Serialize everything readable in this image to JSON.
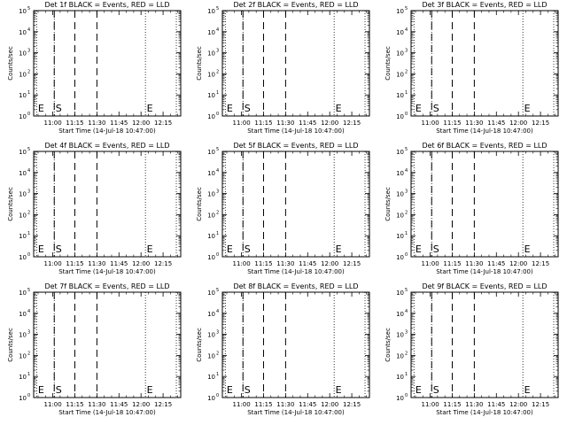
{
  "chart_data": [
    {
      "type": "line",
      "title": "Det 1f BLACK = Events, RED = LLD",
      "xlabel": "Start Time (14-Jul-18 10:47:00)",
      "ylabel": "Counts/sec",
      "y_scale": "log",
      "ylim": [
        1,
        100000
      ],
      "ytick_labels": [
        "10^0",
        "10^1",
        "10^2",
        "10^3",
        "10^4",
        "10^5"
      ],
      "xlim": [
        "10:47",
        "12:27"
      ],
      "xticks": [
        "11:00",
        "11:15",
        "11:30",
        "11:45",
        "12:00",
        "12:15"
      ],
      "series": [],
      "markers": {
        "dotted_lines": [
          "10:49",
          "11:01",
          "12:03",
          "12:24"
        ],
        "dashed_lines": [
          "11:01",
          "11:15",
          "11:30"
        ],
        "labels": [
          {
            "text": "E",
            "x": "10:49"
          },
          {
            "text": "S",
            "x": "11:01"
          },
          {
            "text": "E",
            "x": "12:03"
          }
        ]
      }
    },
    {
      "type": "line",
      "title": "Det 2f BLACK = Events, RED = LLD",
      "xlabel": "Start Time (14-Jul-18 10:47:00)",
      "ylabel": "Counts/sec",
      "y_scale": "log",
      "ylim": [
        1,
        100000
      ],
      "ytick_labels": [
        "10^0",
        "10^1",
        "10^2",
        "10^3",
        "10^4",
        "10^5"
      ],
      "xlim": [
        "10:47",
        "12:27"
      ],
      "xticks": [
        "11:00",
        "11:15",
        "11:30",
        "11:45",
        "12:00",
        "12:15"
      ],
      "series": [],
      "markers": {
        "dotted_lines": [
          "10:49",
          "11:01",
          "12:03",
          "12:24"
        ],
        "dashed_lines": [
          "11:01",
          "11:15",
          "11:30"
        ],
        "labels": [
          {
            "text": "E",
            "x": "10:49"
          },
          {
            "text": "S",
            "x": "11:01"
          },
          {
            "text": "E",
            "x": "12:03"
          }
        ]
      }
    },
    {
      "type": "line",
      "title": "Det 3f BLACK = Events, RED = LLD",
      "xlabel": "Start Time (14-Jul-18 10:47:00)",
      "ylabel": "Counts/sec",
      "y_scale": "log",
      "ylim": [
        1,
        100000
      ],
      "ytick_labels": [
        "10^0",
        "10^1",
        "10^2",
        "10^3",
        "10^4",
        "10^5"
      ],
      "xlim": [
        "10:47",
        "12:27"
      ],
      "xticks": [
        "11:00",
        "11:15",
        "11:30",
        "11:45",
        "12:00",
        "12:15"
      ],
      "series": [],
      "markers": {
        "dotted_lines": [
          "10:49",
          "11:01",
          "12:03",
          "12:24"
        ],
        "dashed_lines": [
          "11:01",
          "11:15",
          "11:30"
        ],
        "labels": [
          {
            "text": "E",
            "x": "10:49"
          },
          {
            "text": "S",
            "x": "11:01"
          },
          {
            "text": "E",
            "x": "12:03"
          }
        ]
      }
    },
    {
      "type": "line",
      "title": "Det 4f BLACK = Events, RED = LLD",
      "xlabel": "Start Time (14-Jul-18 10:47:00)",
      "ylabel": "Counts/sec",
      "y_scale": "log",
      "ylim": [
        1,
        100000
      ],
      "ytick_labels": [
        "10^0",
        "10^1",
        "10^2",
        "10^3",
        "10^4",
        "10^5"
      ],
      "xlim": [
        "10:47",
        "12:27"
      ],
      "xticks": [
        "11:00",
        "11:15",
        "11:30",
        "11:45",
        "12:00",
        "12:15"
      ],
      "series": [],
      "markers": {
        "dotted_lines": [
          "10:49",
          "11:01",
          "12:03",
          "12:24"
        ],
        "dashed_lines": [
          "11:01",
          "11:15",
          "11:30"
        ],
        "labels": [
          {
            "text": "E",
            "x": "10:49"
          },
          {
            "text": "S",
            "x": "11:01"
          },
          {
            "text": "E",
            "x": "12:03"
          }
        ]
      }
    },
    {
      "type": "line",
      "title": "Det 5f BLACK = Events, RED = LLD",
      "xlabel": "Start Time (14-Jul-18 10:47:00)",
      "ylabel": "Counts/sec",
      "y_scale": "log",
      "ylim": [
        1,
        100000
      ],
      "ytick_labels": [
        "10^0",
        "10^1",
        "10^2",
        "10^3",
        "10^4",
        "10^5"
      ],
      "xlim": [
        "10:47",
        "12:27"
      ],
      "xticks": [
        "11:00",
        "11:15",
        "11:30",
        "11:45",
        "12:00",
        "12:15"
      ],
      "series": [],
      "markers": {
        "dotted_lines": [
          "10:49",
          "11:01",
          "12:03",
          "12:24"
        ],
        "dashed_lines": [
          "11:01",
          "11:15",
          "11:30"
        ],
        "labels": [
          {
            "text": "E",
            "x": "10:49"
          },
          {
            "text": "S",
            "x": "11:01"
          },
          {
            "text": "E",
            "x": "12:03"
          }
        ]
      }
    },
    {
      "type": "line",
      "title": "Det 6f BLACK = Events, RED = LLD",
      "xlabel": "Start Time (14-Jul-18 10:47:00)",
      "ylabel": "Counts/sec",
      "y_scale": "log",
      "ylim": [
        1,
        100000
      ],
      "ytick_labels": [
        "10^0",
        "10^1",
        "10^2",
        "10^3",
        "10^4",
        "10^5"
      ],
      "xlim": [
        "10:47",
        "12:27"
      ],
      "xticks": [
        "11:00",
        "11:15",
        "11:30",
        "11:45",
        "12:00",
        "12:15"
      ],
      "series": [],
      "markers": {
        "dotted_lines": [
          "10:49",
          "11:01",
          "12:03",
          "12:24"
        ],
        "dashed_lines": [
          "11:01",
          "11:15",
          "11:30"
        ],
        "labels": [
          {
            "text": "E",
            "x": "10:49"
          },
          {
            "text": "S",
            "x": "11:01"
          },
          {
            "text": "E",
            "x": "12:03"
          }
        ]
      }
    },
    {
      "type": "line",
      "title": "Det 7f BLACK = Events, RED = LLD",
      "xlabel": "Start Time (14-Jul-18 10:47:00)",
      "ylabel": "Counts/sec",
      "y_scale": "log",
      "ylim": [
        1,
        100000
      ],
      "ytick_labels": [
        "10^0",
        "10^1",
        "10^2",
        "10^3",
        "10^4",
        "10^5"
      ],
      "xlim": [
        "10:47",
        "12:27"
      ],
      "xticks": [
        "11:00",
        "11:15",
        "11:30",
        "11:45",
        "12:00",
        "12:15"
      ],
      "series": [],
      "markers": {
        "dotted_lines": [
          "10:49",
          "11:01",
          "12:03",
          "12:24"
        ],
        "dashed_lines": [
          "11:01",
          "11:15",
          "11:30"
        ],
        "labels": [
          {
            "text": "E",
            "x": "10:49"
          },
          {
            "text": "S",
            "x": "11:01"
          },
          {
            "text": "E",
            "x": "12:03"
          }
        ]
      }
    },
    {
      "type": "line",
      "title": "Det 8f BLACK = Events, RED = LLD",
      "xlabel": "Start Time (14-Jul-18 10:47:00)",
      "ylabel": "Counts/sec",
      "y_scale": "log",
      "ylim": [
        1,
        100000
      ],
      "ytick_labels": [
        "10^0",
        "10^1",
        "10^2",
        "10^3",
        "10^4",
        "10^5"
      ],
      "xlim": [
        "10:47",
        "12:27"
      ],
      "xticks": [
        "11:00",
        "11:15",
        "11:30",
        "11:45",
        "12:00",
        "12:15"
      ],
      "series": [],
      "markers": {
        "dotted_lines": [
          "10:49",
          "11:01",
          "12:03",
          "12:24"
        ],
        "dashed_lines": [
          "11:01",
          "11:15",
          "11:30"
        ],
        "labels": [
          {
            "text": "E",
            "x": "10:49"
          },
          {
            "text": "S",
            "x": "11:01"
          },
          {
            "text": "E",
            "x": "12:03"
          }
        ]
      }
    },
    {
      "type": "line",
      "title": "Det 9f BLACK = Events, RED = LLD",
      "xlabel": "Start Time (14-Jul-18 10:47:00)",
      "ylabel": "Counts/sec",
      "y_scale": "log",
      "ylim": [
        1,
        100000
      ],
      "ytick_labels": [
        "10^0",
        "10^1",
        "10^2",
        "10^3",
        "10^4",
        "10^5"
      ],
      "xlim": [
        "10:47",
        "12:27"
      ],
      "xticks": [
        "11:00",
        "11:15",
        "11:30",
        "11:45",
        "12:00",
        "12:15"
      ],
      "series": [],
      "markers": {
        "dotted_lines": [
          "10:49",
          "11:01",
          "12:03",
          "12:24"
        ],
        "dashed_lines": [
          "11:01",
          "11:15",
          "11:30"
        ],
        "labels": [
          {
            "text": "E",
            "x": "10:49"
          },
          {
            "text": "S",
            "x": "11:01"
          },
          {
            "text": "E",
            "x": "12:03"
          }
        ]
      }
    }
  ],
  "colors": {
    "background": "#ffffff",
    "foreground": "#000000"
  }
}
